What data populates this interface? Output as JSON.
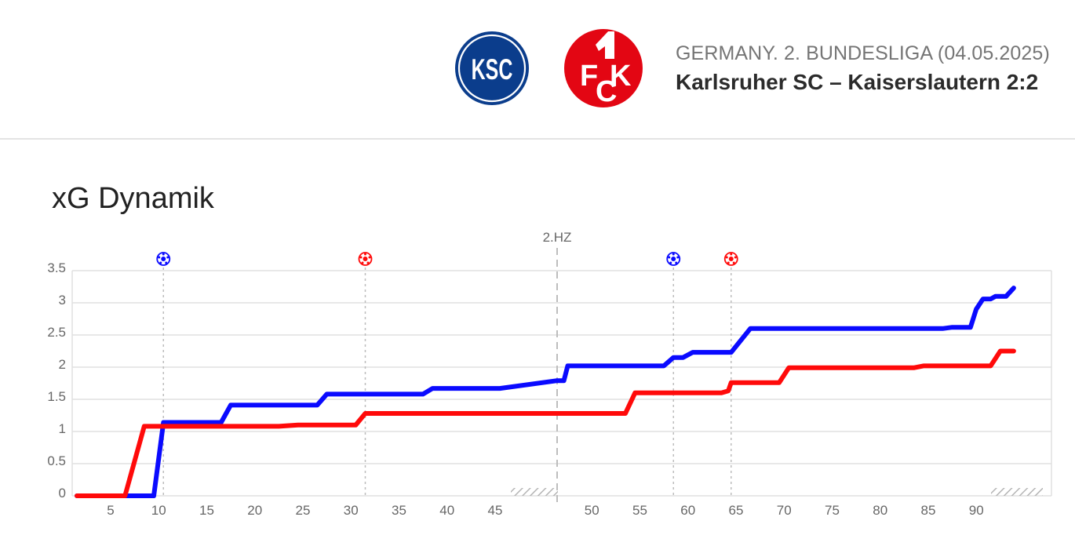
{
  "header": {
    "competition": "GERMANY. 2. BUNDESLIGA (04.05.2025)",
    "match": "Karlsruher SC – Kaiserslautern 2:2",
    "home_logo_text": "KSC",
    "away_logo_text": "1FCK"
  },
  "colors": {
    "home": "#0a0aff",
    "away": "#ff0a0a",
    "grid": "#e0e0e0",
    "marker": "#bdbdbd"
  },
  "chart_data": {
    "type": "line",
    "title": "xG Dynamik",
    "ylim": [
      0,
      3.5
    ],
    "yticks": [
      "0",
      "0.5",
      "1",
      "1.5",
      "2",
      "2.5",
      "3",
      "3.5"
    ],
    "xticks_first_half": [
      "5",
      "10",
      "15",
      "20",
      "25",
      "30",
      "35",
      "40",
      "45"
    ],
    "xticks_second_half": [
      "50",
      "55",
      "60",
      "65",
      "70",
      "75",
      "80",
      "85",
      "90"
    ],
    "halftime_label": "2.HZ",
    "grid": true,
    "series": [
      {
        "team": "home",
        "color": "#0a0aff",
        "goals": [
          10,
          58
        ],
        "points": [
          {
            "x": 1,
            "y": 0
          },
          {
            "x": 9,
            "y": 0
          },
          {
            "x": 10,
            "y": 1.14
          },
          {
            "x": 16,
            "y": 1.14
          },
          {
            "x": 17,
            "y": 1.41
          },
          {
            "x": 26,
            "y": 1.41
          },
          {
            "x": 27,
            "y": 1.58
          },
          {
            "x": 37,
            "y": 1.58
          },
          {
            "x": 38,
            "y": 1.67
          },
          {
            "x": 45,
            "y": 1.67
          },
          {
            "x": 45.9,
            "y": 1.79
          },
          {
            "x": 46.6,
            "y": 1.79
          },
          {
            "x": 47,
            "y": 2.02
          },
          {
            "x": 57,
            "y": 2.02
          },
          {
            "x": 58,
            "y": 2.15
          },
          {
            "x": 59,
            "y": 2.15
          },
          {
            "x": 60,
            "y": 2.23
          },
          {
            "x": 64,
            "y": 2.23
          },
          {
            "x": 66,
            "y": 2.6
          },
          {
            "x": 86,
            "y": 2.6
          },
          {
            "x": 87,
            "y": 2.62
          },
          {
            "x": 88.9,
            "y": 2.62
          },
          {
            "x": 89.5,
            "y": 2.9
          },
          {
            "x": 90.2,
            "y": 3.06
          },
          {
            "x": 91,
            "y": 3.06
          },
          {
            "x": 91.5,
            "y": 3.1
          },
          {
            "x": 92.6,
            "y": 3.1
          },
          {
            "x": 93.4,
            "y": 3.23
          }
        ]
      },
      {
        "team": "away",
        "color": "#ff0a0a",
        "goals": [
          31,
          64
        ],
        "points": [
          {
            "x": 1,
            "y": 0
          },
          {
            "x": 6,
            "y": 0
          },
          {
            "x": 8,
            "y": 1.08
          },
          {
            "x": 22,
            "y": 1.08
          },
          {
            "x": 24,
            "y": 1.1
          },
          {
            "x": 30,
            "y": 1.1
          },
          {
            "x": 31,
            "y": 1.28
          },
          {
            "x": 45,
            "y": 1.28
          },
          {
            "x": 53,
            "y": 1.28
          },
          {
            "x": 54,
            "y": 1.6
          },
          {
            "x": 63,
            "y": 1.6
          },
          {
            "x": 63.7,
            "y": 1.63
          },
          {
            "x": 64,
            "y": 1.76
          },
          {
            "x": 69,
            "y": 1.76
          },
          {
            "x": 70,
            "y": 1.99
          },
          {
            "x": 83,
            "y": 1.99
          },
          {
            "x": 84,
            "y": 2.02
          },
          {
            "x": 91,
            "y": 2.02
          },
          {
            "x": 92,
            "y": 2.25
          },
          {
            "x": 93.4,
            "y": 2.25
          }
        ]
      }
    ]
  }
}
